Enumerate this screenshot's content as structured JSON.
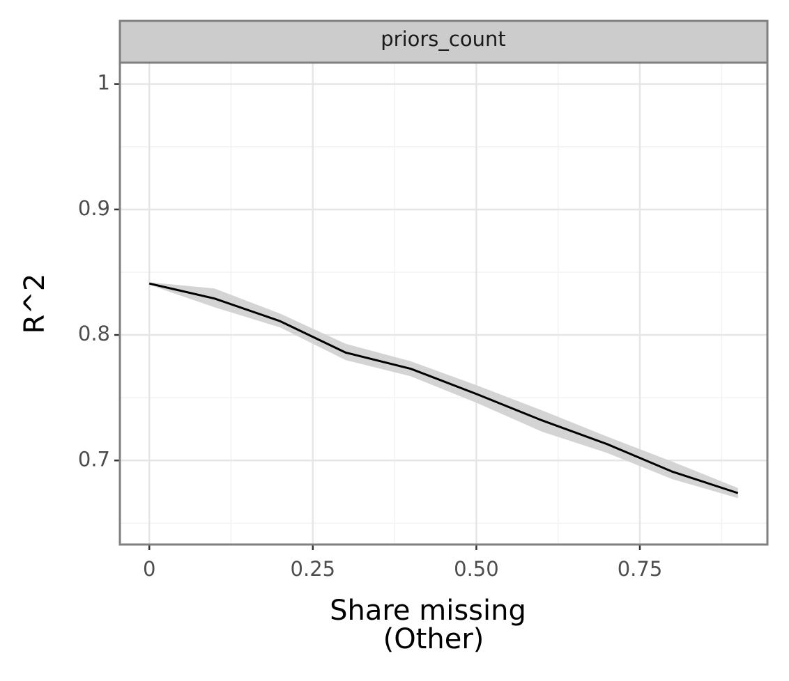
{
  "chart_data": {
    "type": "line",
    "facet_label": "priors_count",
    "xlabel": [
      "Share missing",
      "(Other)"
    ],
    "ylabel": "R^2",
    "x": [
      0,
      0.1,
      0.2,
      0.3,
      0.4,
      0.5,
      0.6,
      0.7,
      0.8,
      0.9
    ],
    "series": [
      {
        "color": "#000000",
        "ribbon_color": "#d4d4d4",
        "values": [
          0.841,
          0.829,
          0.811,
          0.786,
          0.773,
          0.753,
          0.732,
          0.713,
          0.691,
          0.674
        ],
        "lower": [
          0.84,
          0.822,
          0.806,
          0.78,
          0.767,
          0.746,
          0.723,
          0.706,
          0.685,
          0.67
        ],
        "upper": [
          0.842,
          0.837,
          0.817,
          0.793,
          0.779,
          0.76,
          0.74,
          0.719,
          0.699,
          0.678
        ]
      }
    ],
    "xlim": [
      -0.045,
      0.945
    ],
    "ylim": [
      0.633,
      1.017
    ],
    "xticks": [
      0,
      0.25,
      {
        "value": 0.5,
        "label": "0.50"
      },
      0.75
    ],
    "yticks": [
      0.7,
      0.8,
      0.9,
      1
    ],
    "x_minor_ticks": [
      0.125,
      0.375,
      0.625,
      0.875
    ],
    "y_minor_ticks": [
      0.65,
      0.75,
      0.85,
      0.95
    ],
    "grid": true
  }
}
